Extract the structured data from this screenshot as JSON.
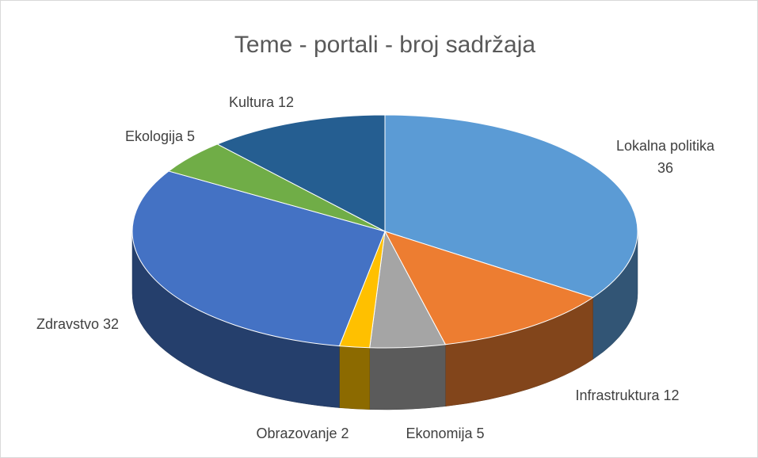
{
  "chart_data": {
    "type": "pie",
    "title": "Teme - portali - broj sadržaja",
    "categories": [
      "Lokalna politika",
      "Infrastruktura",
      "Ekonomija",
      "Obrazovanje",
      "Zdravstvo",
      "Ekologija",
      "Kultura"
    ],
    "values": [
      36,
      12,
      5,
      2,
      32,
      5,
      12
    ],
    "colors": [
      "#5b9bd5",
      "#ed7d31",
      "#a5a5a5",
      "#ffc000",
      "#4472c4",
      "#70ad47",
      "#255e91"
    ],
    "three_d": true
  }
}
